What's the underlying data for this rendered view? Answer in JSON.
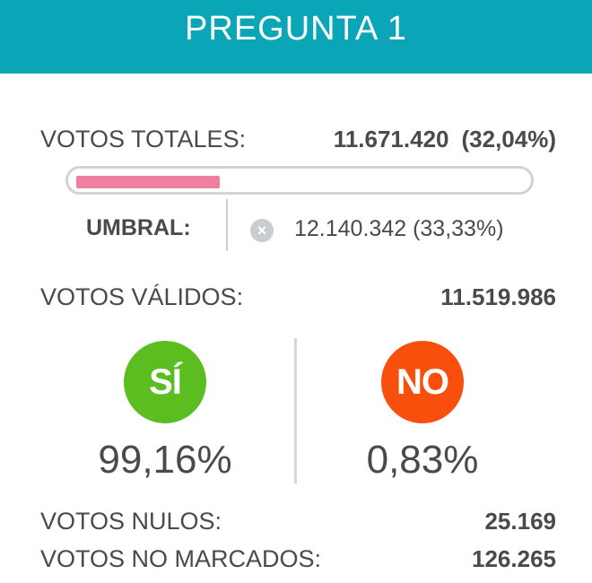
{
  "header": {
    "title": "PREGUNTA 1"
  },
  "totales": {
    "label": "VOTOS TOTALES:",
    "value": "11.671.420",
    "percent": "(32,04%)",
    "progress": 0.3204
  },
  "umbral": {
    "label": "UMBRAL:",
    "icon": "close-circle-icon",
    "value": "12.140.342",
    "percent": "(33,33%)"
  },
  "validos": {
    "label": "VOTOS VÁLIDOS:",
    "value": "11.519.986"
  },
  "si": {
    "label": "SÍ",
    "percent": "99,16%",
    "color": "#5bbd1f"
  },
  "no": {
    "label": "NO",
    "percent": "0,83%",
    "color": "#f8500c"
  },
  "nulos": {
    "label": "VOTOS NULOS:",
    "value": "25.169"
  },
  "no_marcados": {
    "label": "VOTOS NO MARCADOS:",
    "value": "126.265"
  },
  "colors": {
    "header": "#0aa6b8",
    "progress_fill": "#ee7f9e"
  }
}
